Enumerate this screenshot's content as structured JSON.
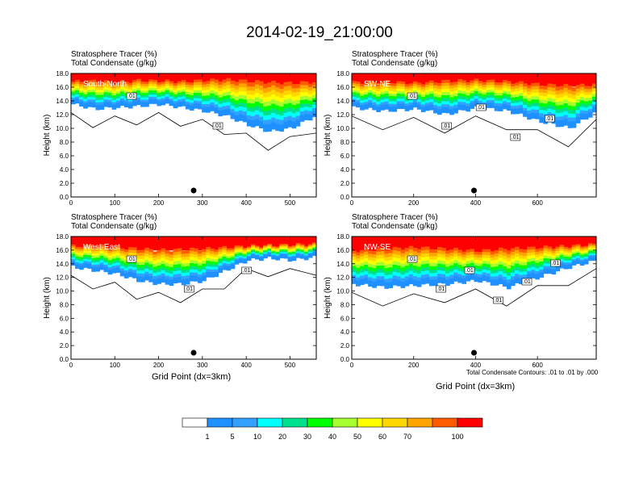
{
  "title": "2014-02-19_21:00:00",
  "colors": {
    "levels": [
      "#ffffff",
      "#1e90ff",
      "#33a0ff",
      "#00ffff",
      "#00e08c",
      "#00ff00",
      "#a5ff2f",
      "#ffff00",
      "#ffd700",
      "#ffa500",
      "#ff5a00",
      "#ff0000"
    ]
  },
  "colorbar": {
    "ticks": [
      "1",
      "5",
      "10",
      "20",
      "30",
      "40",
      "50",
      "60",
      "70",
      "100"
    ]
  },
  "contour_note": "Total Condensate Contours: .01 to .01 by .000",
  "xlabel": "Grid Point (dx=3km)",
  "chart_data": [
    {
      "type": "heatmap",
      "region": "South-North",
      "title_line1": "Stratosphere Tracer   (%)",
      "title_line2": "Total Condensate   (g/kg)",
      "ylabel": "Height (km)",
      "xlim": [
        0,
        560
      ],
      "ylim": [
        0,
        18
      ],
      "x_ticks": [
        "0",
        "100",
        "200",
        "300",
        "400",
        "500"
      ],
      "y_ticks": [
        "0.0",
        "2.0",
        "4.0",
        "6.0",
        "8.0",
        "10.0",
        "12.0",
        "14.0",
        "16.0",
        "18.0"
      ],
      "contour_labels": [
        ".01",
        ".01"
      ],
      "marker_x": 280,
      "tracer_profile": {
        "x": [
          0,
          50,
          100,
          150,
          200,
          250,
          300,
          350,
          400,
          450,
          500,
          560
        ],
        "top_band_base_km": [
          16.4,
          16.5,
          16.3,
          16.6,
          16.5,
          16.4,
          16.6,
          16.7,
          16.5,
          16.3,
          16.2,
          16.4
        ],
        "lowest_tracer_km": [
          13.5,
          12.8,
          13.0,
          13.2,
          13.5,
          13.0,
          12.5,
          11.8,
          10.5,
          9.5,
          10.0,
          12.0
        ]
      }
    },
    {
      "type": "heatmap",
      "region": "SW-NE",
      "title_line1": "Stratosphere Tracer   (%)",
      "title_line2": "Total Condensate   (g/kg)",
      "ylabel": "Height (km)",
      "xlim": [
        0,
        790
      ],
      "ylim": [
        0,
        18
      ],
      "x_ticks": [
        "0",
        "200",
        "400",
        "600"
      ],
      "y_ticks": [
        "0.0",
        "2.0",
        "4.0",
        "6.0",
        "8.0",
        "10.0",
        "12.0",
        "14.0",
        "16.0",
        "18.0"
      ],
      "contour_labels": [
        ".01",
        ".01",
        ".01",
        ".01",
        ".01"
      ],
      "marker_x": 395,
      "tracer_profile": {
        "x": [
          0,
          100,
          200,
          300,
          400,
          500,
          600,
          700,
          790
        ],
        "top_band_base_km": [
          16.3,
          16.4,
          16.2,
          16.5,
          16.6,
          16.4,
          16.0,
          15.8,
          16.0
        ],
        "lowest_tracer_km": [
          13.0,
          12.5,
          12.8,
          12.0,
          13.0,
          12.5,
          11.0,
          10.0,
          12.5
        ]
      }
    },
    {
      "type": "heatmap",
      "region": "West-East",
      "title_line1": "Stratosphere Tracer   (%)",
      "title_line2": "Total Condensate   (g/kg)",
      "ylabel": "Height (km)",
      "xlim": [
        0,
        560
      ],
      "ylim": [
        0,
        18
      ],
      "x_ticks": [
        "0",
        "100",
        "200",
        "300",
        "400",
        "500"
      ],
      "y_ticks": [
        "0.0",
        "2.0",
        "4.0",
        "6.0",
        "8.0",
        "10.0",
        "12.0",
        "14.0",
        "16.0",
        "18.0"
      ],
      "contour_labels": [
        ".01",
        ".01",
        ".01"
      ],
      "marker_x": 280,
      "tracer_profile": {
        "x": [
          0,
          50,
          100,
          150,
          200,
          250,
          300,
          350,
          400,
          450,
          500,
          560
        ],
        "top_band_base_km": [
          16.2,
          16.3,
          16.0,
          15.8,
          15.6,
          15.7,
          15.8,
          16.0,
          16.2,
          16.3,
          16.4,
          16.5
        ],
        "lowest_tracer_km": [
          13.5,
          13.0,
          12.5,
          11.5,
          11.0,
          11.0,
          11.5,
          13.0,
          14.5,
          14.8,
          14.5,
          15.0
        ]
      }
    },
    {
      "type": "heatmap",
      "region": "NW-SE",
      "title_line1": "Stratosphere Tracer   (%)",
      "title_line2": "Total Condensate   (g/kg)",
      "ylabel": "Height (km)",
      "xlim": [
        0,
        790
      ],
      "ylim": [
        0,
        18
      ],
      "x_ticks": [
        "0",
        "200",
        "400",
        "600"
      ],
      "y_ticks": [
        "0.0",
        "2.0",
        "4.0",
        "6.0",
        "8.0",
        "10.0",
        "12.0",
        "14.0",
        "16.0",
        "18.0"
      ],
      "contour_labels": [
        ".01",
        ".01",
        ".01",
        ".01",
        ".01",
        ".01"
      ],
      "marker_x": 395,
      "tracer_profile": {
        "x": [
          0,
          100,
          200,
          300,
          400,
          500,
          600,
          700,
          790
        ],
        "top_band_base_km": [
          15.5,
          15.8,
          16.0,
          15.8,
          15.5,
          15.8,
          16.0,
          16.2,
          16.5
        ],
        "lowest_tracer_km": [
          11.0,
          10.5,
          10.8,
          11.0,
          11.5,
          10.5,
          12.0,
          13.5,
          14.5
        ]
      }
    }
  ]
}
